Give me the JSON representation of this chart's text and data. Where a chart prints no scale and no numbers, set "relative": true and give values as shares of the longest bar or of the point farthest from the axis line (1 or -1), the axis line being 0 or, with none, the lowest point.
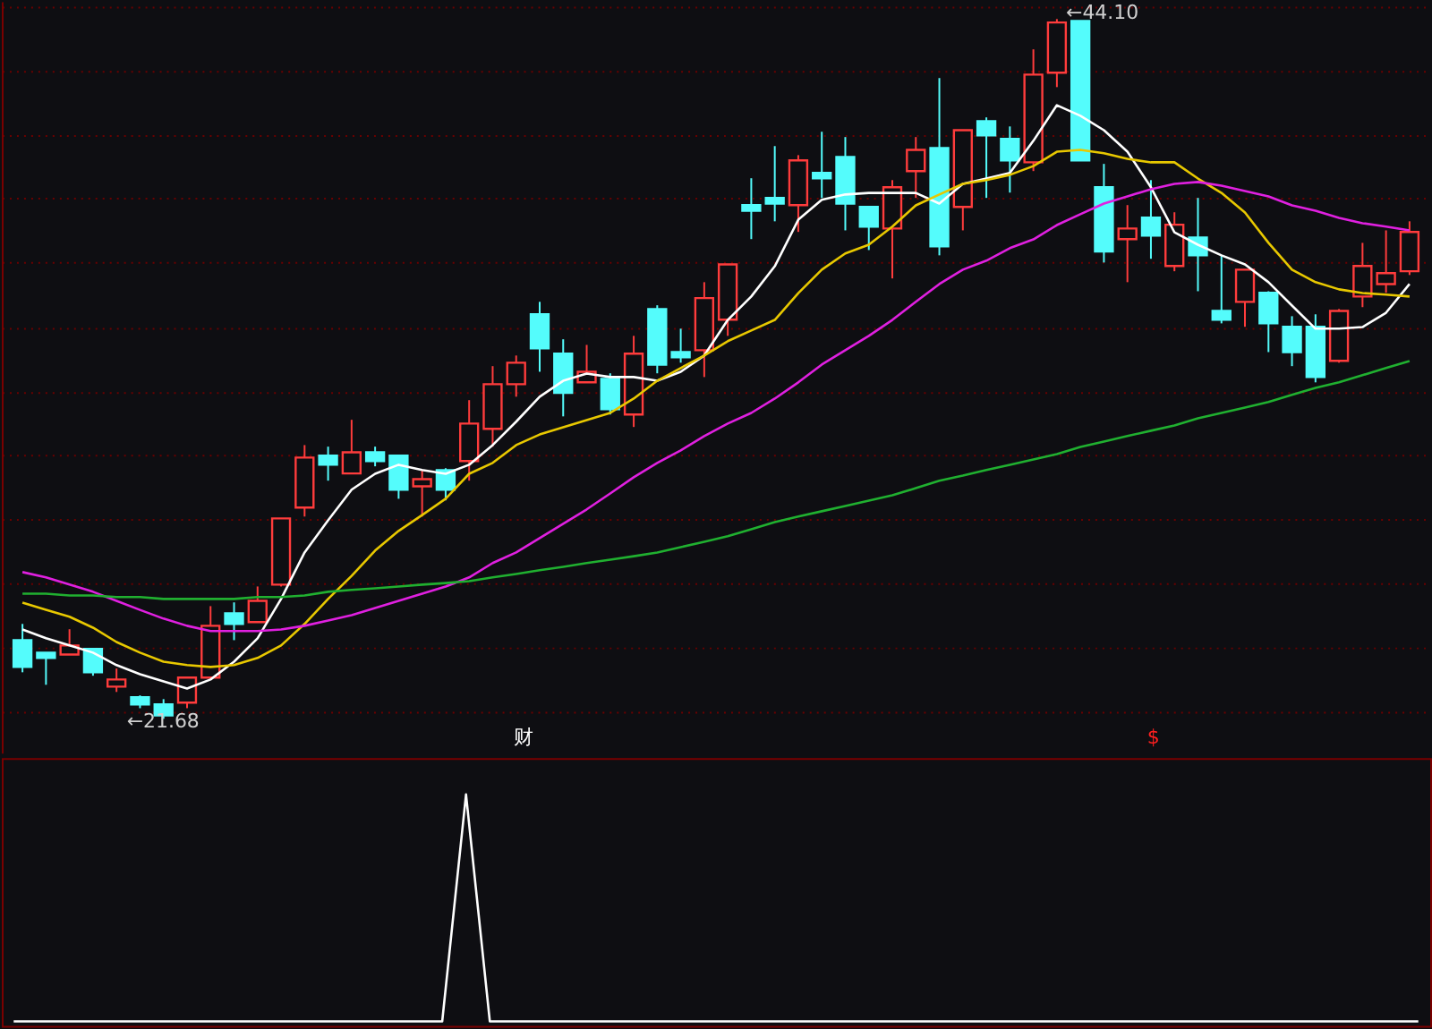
{
  "chart_data": [
    {
      "type": "candlestick",
      "categories": [
        null,
        null,
        null,
        null,
        null,
        null,
        null,
        null,
        null,
        null,
        null,
        null,
        null,
        null,
        null,
        null,
        null,
        null,
        null,
        null,
        null,
        null,
        null,
        null,
        null,
        null,
        null,
        null,
        null,
        null,
        null,
        null,
        null,
        null,
        null,
        null,
        null,
        null,
        null,
        null,
        null,
        null,
        null,
        null,
        null,
        null,
        null,
        null,
        null,
        null,
        null,
        null,
        null,
        null,
        null,
        null,
        null,
        null,
        null,
        null
      ],
      "ohlc": [
        [
          24.2,
          24.72,
          23.17,
          23.34
        ],
        [
          23.8,
          23.8,
          22.77,
          23.63
        ],
        [
          23.74,
          24.55,
          23.74,
          24.03
        ],
        [
          23.92,
          23.92,
          23.06,
          23.17
        ],
        [
          22.71,
          23.29,
          22.54,
          22.94
        ],
        [
          22.37,
          22.43,
          22.02,
          22.14
        ],
        [
          22.14,
          22.31,
          21.68,
          21.79
        ],
        [
          22.2,
          23.0,
          22.02,
          23.0
        ],
        [
          23.0,
          25.29,
          23.0,
          24.66
        ],
        [
          25.06,
          25.41,
          24.2,
          24.72
        ],
        [
          24.78,
          25.92,
          24.78,
          25.46
        ],
        [
          25.98,
          28.1,
          25.92,
          28.1
        ],
        [
          28.45,
          30.45,
          28.16,
          30.05
        ],
        [
          30.11,
          30.4,
          29.31,
          29.82
        ],
        [
          29.54,
          31.26,
          29.54,
          30.22
        ],
        [
          30.22,
          30.4,
          29.77,
          29.94
        ],
        [
          30.11,
          30.11,
          28.73,
          29.02
        ],
        [
          29.13,
          29.65,
          28.16,
          29.36
        ],
        [
          29.65,
          29.71,
          28.68,
          29.02
        ],
        [
          29.94,
          31.89,
          29.31,
          31.14
        ],
        [
          30.97,
          32.98,
          30.4,
          32.4
        ],
        [
          32.4,
          33.32,
          32.0,
          33.09
        ],
        [
          34.64,
          35.04,
          32.8,
          33.55
        ],
        [
          33.38,
          33.84,
          31.37,
          32.12
        ],
        [
          32.46,
          33.66,
          32.46,
          32.8
        ],
        [
          32.57,
          32.75,
          31.43,
          31.6
        ],
        [
          31.43,
          33.95,
          31.03,
          33.38
        ],
        [
          34.81,
          34.93,
          32.75,
          33.03
        ],
        [
          33.43,
          34.18,
          33.09,
          33.26
        ],
        [
          33.49,
          35.67,
          32.63,
          35.16
        ],
        [
          34.47,
          36.24,
          33.95,
          36.24
        ],
        [
          38.14,
          39.0,
          37.05,
          37.96
        ],
        [
          38.37,
          40.03,
          37.62,
          38.19
        ],
        [
          38.14,
          39.74,
          37.28,
          39.57
        ],
        [
          39.17,
          40.49,
          38.37,
          39.0
        ],
        [
          39.68,
          40.32,
          37.33,
          38.19
        ],
        [
          38.08,
          38.08,
          36.7,
          37.45
        ],
        [
          37.39,
          38.94,
          35.79,
          38.71
        ],
        [
          39.23,
          40.32,
          38.37,
          39.91
        ],
        [
          39.97,
          42.21,
          36.53,
          36.82
        ],
        [
          38.08,
          40.54,
          37.33,
          40.54
        ],
        [
          40.83,
          40.95,
          38.37,
          40.37
        ],
        [
          40.26,
          40.66,
          38.54,
          39.57
        ],
        [
          39.51,
          43.13,
          39.23,
          42.32
        ],
        [
          42.38,
          44.1,
          41.92,
          43.99
        ],
        [
          44.04,
          44.04,
          39.57,
          39.57
        ],
        [
          38.71,
          39.46,
          36.3,
          36.65
        ],
        [
          37.05,
          38.14,
          35.67,
          37.39
        ],
        [
          37.74,
          38.94,
          36.42,
          37.16
        ],
        [
          36.19,
          37.91,
          36.02,
          37.51
        ],
        [
          37.1,
          38.37,
          35.38,
          36.53
        ],
        [
          34.75,
          36.53,
          34.35,
          34.47
        ],
        [
          35.04,
          36.07,
          34.24,
          36.07
        ],
        [
          35.33,
          35.38,
          33.43,
          34.35
        ],
        [
          34.24,
          34.58,
          32.98,
          33.43
        ],
        [
          34.24,
          34.64,
          32.46,
          32.63
        ],
        [
          33.15,
          34.81,
          33.09,
          34.75
        ],
        [
          35.21,
          36.93,
          34.87,
          36.19
        ],
        [
          35.61,
          37.33,
          35.33,
          35.96
        ],
        [
          36.02,
          37.62,
          35.9,
          37.28
        ]
      ],
      "colors": [
        "#54fcfc",
        "#54fcfc",
        "#ff3c3c",
        "#54fcfc",
        "#ff3c3c",
        "#54fcfc",
        "#54fcfc",
        "#ff3c3c",
        "#ff3c3c",
        "#54fcfc",
        "#ff3c3c",
        "#ff3c3c",
        "#ff3c3c",
        "#54fcfc",
        "#ff3c3c",
        "#54fcfc",
        "#54fcfc",
        "#ff3c3c",
        "#54fcfc",
        "#ff3c3c",
        "#ff3c3c",
        "#ff3c3c",
        "#54fcfc",
        "#54fcfc",
        "#ff3c3c",
        "#54fcfc",
        "#ff3c3c",
        "#54fcfc",
        "#54fcfc",
        "#ff3c3c",
        "#ff3c3c",
        "#54fcfc",
        "#54fcfc",
        "#ff3c3c",
        "#54fcfc",
        "#54fcfc",
        "#54fcfc",
        "#ff3c3c",
        "#ff3c3c",
        "#54fcfc",
        "#ff3c3c",
        "#54fcfc",
        "#54fcfc",
        "#ff3c3c",
        "#ff3c3c",
        "#54fcfc",
        "#54fcfc",
        "#ff3c3c",
        "#54fcfc",
        "#ff3c3c",
        "#54fcfc",
        "#54fcfc",
        "#ff3c3c",
        "#54fcfc",
        "#54fcfc",
        "#54fcfc",
        "#ff3c3c",
        "#ff3c3c",
        "#ff3c3c",
        "#ff3c3c"
      ],
      "series": [
        {
          "type": "line",
          "color": "#ffffff",
          "values": [
            24.54,
            24.26,
            24.03,
            23.8,
            23.4,
            23.11,
            22.88,
            22.65,
            22.94,
            23.51,
            24.26,
            25.52,
            27.01,
            28.04,
            29.02,
            29.53,
            29.82,
            29.65,
            29.53,
            29.82,
            30.45,
            31.2,
            32.0,
            32.51,
            32.74,
            32.63,
            32.63,
            32.51,
            32.8,
            33.32,
            34.46,
            35.21,
            36.18,
            37.67,
            38.31,
            38.48,
            38.53,
            38.53,
            38.53,
            38.19,
            38.82,
            38.99,
            39.17,
            40.2,
            41.34,
            41.0,
            40.54,
            39.85,
            38.71,
            37.27,
            36.87,
            36.53,
            36.24,
            35.67,
            34.92,
            34.18,
            34.18,
            34.23,
            34.69,
            35.61
          ]
        },
        {
          "type": "line",
          "color": "#e8c800",
          "values": [
            25.4,
            25.17,
            24.95,
            24.6,
            24.14,
            23.8,
            23.51,
            23.4,
            23.34,
            23.4,
            23.63,
            24.03,
            24.72,
            25.52,
            26.26,
            27.07,
            27.7,
            28.21,
            28.73,
            29.53,
            29.88,
            30.45,
            30.79,
            31.02,
            31.25,
            31.48,
            31.94,
            32.51,
            32.92,
            33.32,
            33.78,
            34.12,
            34.46,
            35.32,
            36.07,
            36.59,
            36.87,
            37.45,
            38.13,
            38.48,
            38.82,
            38.94,
            39.11,
            39.39,
            39.85,
            39.91,
            39.8,
            39.62,
            39.51,
            39.51,
            38.99,
            38.53,
            37.9,
            36.93,
            36.07,
            35.67,
            35.44,
            35.32,
            35.27,
            35.21
          ]
        },
        {
          "type": "line",
          "color": "#e020e0",
          "values": [
            26.38,
            26.21,
            25.98,
            25.75,
            25.46,
            25.17,
            24.89,
            24.66,
            24.49,
            24.49,
            24.49,
            24.54,
            24.66,
            24.83,
            25.0,
            25.23,
            25.46,
            25.69,
            25.92,
            26.21,
            26.67,
            27.01,
            27.47,
            27.93,
            28.39,
            28.9,
            29.42,
            29.88,
            30.28,
            30.74,
            31.14,
            31.48,
            31.94,
            32.46,
            33.03,
            33.49,
            33.95,
            34.46,
            35.04,
            35.61,
            36.07,
            36.36,
            36.76,
            37.04,
            37.5,
            37.85,
            38.19,
            38.42,
            38.65,
            38.82,
            38.88,
            38.76,
            38.59,
            38.42,
            38.13,
            37.96,
            37.73,
            37.56,
            37.45,
            37.33
          ]
        },
        {
          "type": "line",
          "color": "#20b030",
          "values": [
            25.69,
            25.69,
            25.63,
            25.63,
            25.58,
            25.58,
            25.52,
            25.52,
            25.52,
            25.52,
            25.58,
            25.58,
            25.63,
            25.75,
            25.81,
            25.86,
            25.92,
            25.98,
            26.03,
            26.09,
            26.21,
            26.32,
            26.44,
            26.55,
            26.67,
            26.78,
            26.89,
            27.01,
            27.18,
            27.35,
            27.53,
            27.75,
            27.98,
            28.16,
            28.33,
            28.5,
            28.67,
            28.84,
            29.07,
            29.31,
            29.47,
            29.65,
            29.82,
            29.99,
            30.16,
            30.39,
            30.56,
            30.74,
            30.91,
            31.08,
            31.31,
            31.48,
            31.65,
            31.83,
            32.06,
            32.28,
            32.46,
            32.69,
            32.92,
            33.14
          ]
        }
      ],
      "ylim": [
        20.59,
        44.67
      ],
      "yticks": [
        {
          "value": 44.5,
          "label": null
        },
        {
          "value": 42.43,
          "label": null
        },
        {
          "value": 40.37,
          "label": null
        },
        {
          "value": 38.36,
          "label": null
        },
        {
          "value": 36.3,
          "label": null
        },
        {
          "value": 34.23,
          "label": null
        },
        {
          "value": 32.17,
          "label": null
        },
        {
          "value": 30.16,
          "label": null
        },
        {
          "value": 28.1,
          "label": null
        },
        {
          "value": 26.03,
          "label": null
        },
        {
          "value": 23.97,
          "label": null
        },
        {
          "value": 21.91,
          "label": null
        }
      ],
      "grid": "y",
      "tick_labels": false,
      "annotations": [
        "←44.10",
        "←21.68",
        "财",
        "$"
      ]
    },
    {
      "type": "line",
      "relative": true,
      "categories": [
        null,
        null,
        null,
        null,
        null,
        null,
        null,
        null,
        null,
        null,
        null,
        null,
        null,
        null,
        null,
        null,
        null,
        null,
        null,
        null,
        null,
        null,
        null,
        null,
        null,
        null,
        null,
        null,
        null,
        null,
        null,
        null,
        null,
        null,
        null,
        null,
        null,
        null,
        null,
        null,
        null,
        null,
        null,
        null,
        null,
        null,
        null,
        null,
        null,
        null,
        null,
        null,
        null,
        null,
        null,
        null,
        null,
        null,
        null,
        null
      ],
      "series": [
        {
          "color": "#ffffff",
          "values": [
            0,
            0,
            0,
            0,
            0,
            0,
            0,
            0,
            0,
            0,
            0,
            0,
            0,
            0,
            0,
            0,
            0,
            0,
            0,
            1,
            0,
            0,
            0,
            0,
            0,
            0,
            0,
            0,
            0,
            0,
            0,
            0,
            0,
            0,
            0,
            0,
            0,
            0,
            0,
            0,
            0,
            0,
            0,
            0,
            0,
            0,
            0,
            0,
            0,
            0,
            0,
            0,
            0,
            0,
            0,
            0,
            0,
            0,
            0,
            0
          ]
        }
      ]
    }
  ]
}
